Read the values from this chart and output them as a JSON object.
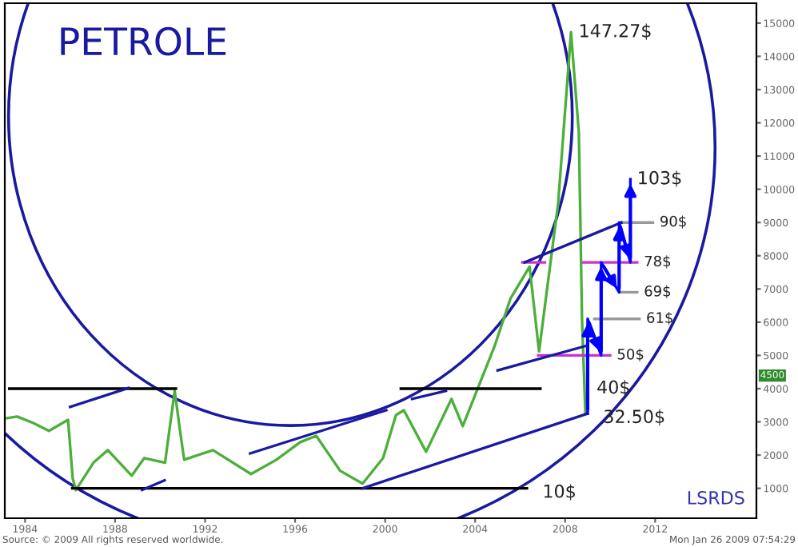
{
  "chart_data": {
    "type": "line",
    "title": "PETROLE",
    "xlim": [
      1983.1,
      2016.5
    ],
    "ylim": [
      100,
      15600
    ],
    "xticks": [
      {
        "value": 1984,
        "label": "1984"
      },
      {
        "value": 1988,
        "label": "1988"
      },
      {
        "value": 1992,
        "label": "1992"
      },
      {
        "value": 1996,
        "label": "1996"
      },
      {
        "value": 2000,
        "label": "2000"
      },
      {
        "value": 2004,
        "label": "2004"
      },
      {
        "value": 2008,
        "label": "2008"
      },
      {
        "value": 2012,
        "label": "2012"
      }
    ],
    "yticks": [
      1000,
      2000,
      3000,
      4000,
      5000,
      6000,
      7000,
      8000,
      9000,
      10000,
      11000,
      12000,
      13000,
      14000,
      15000
    ],
    "grid": false,
    "legend": false,
    "series": [
      {
        "color": "#4caf3a",
        "x": [
          1983.2,
          1983.65,
          1984.35,
          1985.06,
          1985.91,
          1986.12,
          1986.26,
          1987.04,
          1987.68,
          1988.74,
          1989.3,
          1990.22,
          1990.65,
          1990.86,
          1991.07,
          1992.35,
          1994.04,
          1995.17,
          1996.23,
          1996.94,
          1998.0,
          1999.0,
          1999.91,
          2000.48,
          2000.83,
          2001.82,
          2002.95,
          2003.45,
          2004.86,
          2005.57,
          2006.42,
          2006.84,
          2007.69,
          2008.26,
          2008.61,
          2008.75,
          2008.9
        ],
        "values": [
          3110,
          3160,
          2970,
          2730,
          3060,
          1290,
          950,
          1770,
          2150,
          1380,
          1910,
          1770,
          3930,
          2870,
          1860,
          2150,
          1430,
          1860,
          2390,
          2580,
          1530,
          1140,
          1910,
          3200,
          3350,
          2100,
          3690,
          2870,
          5270,
          6710,
          7670,
          5120,
          9580,
          14727,
          11690,
          6080,
          3250
        ]
      },
      {
        "color": "#000000",
        "x": [
          1986.1,
          2006.3
        ],
        "values": [
          1000,
          1000
        ]
      },
      {
        "color": "#000000",
        "x": [
          1983.3,
          1990.7
        ],
        "values": [
          4000,
          4000
        ]
      },
      {
        "color": "#000000",
        "x": [
          2000.7,
          2006.9
        ],
        "values": [
          4000,
          4000
        ]
      },
      {
        "color": "#cc33cc",
        "x": [
          2006.1,
          2007.1
        ],
        "values": [
          7800,
          7800
        ]
      },
      {
        "color": "#cc33cc",
        "x": [
          2008.8,
          2011.2
        ],
        "values": [
          7800,
          7800
        ]
      },
      {
        "color": "#cc33cc",
        "x": [
          2006.8,
          2010.0
        ],
        "values": [
          5000,
          5000
        ]
      },
      {
        "color": "#999999",
        "x": [
          2009.3,
          2011.3
        ],
        "values": [
          6100,
          6100
        ]
      },
      {
        "color": "#999999",
        "x": [
          2010.4,
          2011.2
        ],
        "values": [
          6900,
          6900
        ]
      },
      {
        "color": "#999999",
        "x": [
          2010.5,
          2011.9
        ],
        "values": [
          9000,
          9000
        ]
      },
      {
        "color": "#1a1aa0",
        "x": [
          1999.0,
          2009.0
        ],
        "values": [
          1000,
          3250
        ]
      },
      {
        "color": "#1a1aa0",
        "x": [
          2005.0,
          2009.0
        ],
        "values": [
          4550,
          5300
        ]
      },
      {
        "color": "#1a1aa0",
        "x": [
          2006.2,
          2010.5
        ],
        "values": [
          7800,
          9000
        ]
      },
      {
        "color": "#1a1aa0",
        "x": [
          1986.0,
          1988.6
        ],
        "values": [
          3450,
          4020
        ]
      },
      {
        "color": "#1a1aa0",
        "x": [
          1989.2,
          1990.2
        ],
        "values": [
          950,
          1240
        ]
      },
      {
        "color": "#1a1aa0",
        "x": [
          1994.0,
          2000.05
        ],
        "values": [
          2050,
          3350
        ]
      },
      {
        "color": "#1a1aa0",
        "x": [
          2001.2,
          2002.7
        ],
        "values": [
          3690,
          3930
        ]
      },
      {
        "color": "#0000ff",
        "x": [
          2009.0,
          2009.0,
          2009.6,
          2009.6,
          2010.4,
          2010.4,
          2010.9,
          2010.9
        ],
        "values": [
          3250,
          6100,
          5000,
          7800,
          6900,
          9000,
          7800,
          10300
        ]
      }
    ],
    "annotations": [
      "Source: © 2009 All rights reserved worldwide.",
      "Mon Jan 26 2009 07:54:29",
      "LSRDS",
      "4500",
      {
        "text": "147.27$",
        "x": 2008.3,
        "y": 14727
      },
      {
        "text": "103$",
        "x": 2010.9,
        "y": 10300
      },
      {
        "text": "90$",
        "x": 2011.9,
        "y": 9000
      },
      {
        "text": "78$",
        "x": 2011.2,
        "y": 7800
      },
      {
        "text": "69$",
        "x": 2011.2,
        "y": 6900
      },
      {
        "text": "61$",
        "x": 2011.3,
        "y": 6100
      },
      {
        "text": "50$",
        "x": 2010.0,
        "y": 5000
      },
      {
        "text": "40$",
        "x": 2009.1,
        "y": 4000
      },
      {
        "text": "32.50$",
        "x": 2009.0,
        "y": 3250
      },
      {
        "text": "10$",
        "x": 2006.3,
        "y": 1000
      }
    ]
  }
}
